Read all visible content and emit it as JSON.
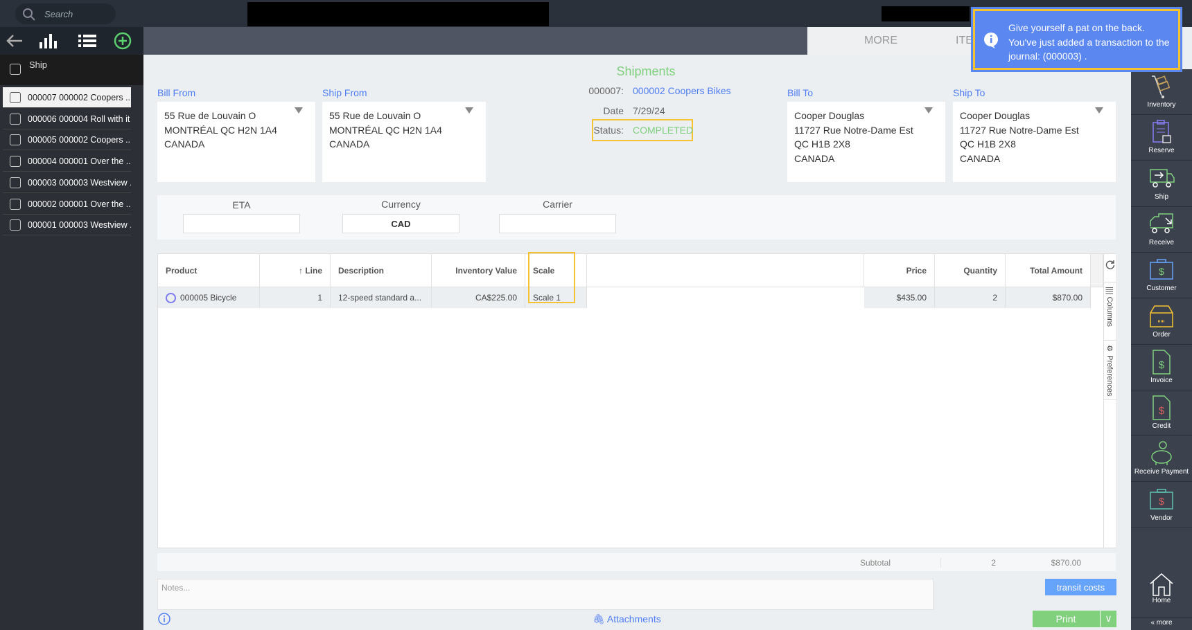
{
  "topbar": {
    "search_placeholder": "Search"
  },
  "left": {
    "header": "Ship",
    "items": [
      "000007 000002 Coopers ...",
      "000006 000004 Roll with it",
      "000005 000002 Coopers ...",
      "000004 000001 Over the ...",
      "000003 000003 Westview .",
      "000002 000001 Over the ...",
      "000001 000003 Westview ."
    ]
  },
  "tabs": [
    "MORE",
    "ITE"
  ],
  "toast": {
    "line1": "Give yourself a pat on the back.",
    "line2": "You've just added a transaction to the",
    "line3": "journal:  (000003)  ."
  },
  "header": {
    "title": "Shipments",
    "number": "000007:",
    "customer": "000002 Coopers Bikes",
    "date_label": "Date",
    "date": "7/29/24",
    "status_label": "Status:",
    "status": "COMPLETED"
  },
  "addresses": {
    "bill_from": {
      "label": "Bill From",
      "lines": [
        "55 Rue de Louvain O",
        "MONTRÉAL QC  H2N 1A4",
        "CANADA"
      ]
    },
    "ship_from": {
      "label": "Ship From",
      "lines": [
        "55 Rue de Louvain O",
        "MONTRÉAL QC  H2N 1A4",
        "CANADA"
      ]
    },
    "bill_to": {
      "label": "Bill To",
      "lines": [
        "Cooper Douglas",
        "11727 Rue Notre-Dame Est",
        "QC  H1B 2X8",
        "CANADA"
      ]
    },
    "ship_to": {
      "label": "Ship To",
      "lines": [
        "Cooper Douglas",
        "11727 Rue Notre-Dame Est",
        "QC  H1B 2X8",
        "CANADA"
      ]
    }
  },
  "fields": {
    "eta_label": "ETA",
    "eta": "",
    "currency_label": "Currency",
    "currency": "CAD",
    "carrier_label": "Carrier",
    "carrier": ""
  },
  "grid": {
    "columns": [
      "Product",
      "↑ Line",
      "Description",
      "Inventory Value",
      "Scale",
      "Price",
      "Quantity",
      "Total Amount"
    ],
    "rows": [
      {
        "product": "000005 Bicycle",
        "line": "1",
        "description": "12-speed standard a...",
        "inventory_value": "CA$225.00",
        "scale": "Scale 1",
        "price": "$435.00",
        "quantity": "2",
        "total": "$870.00"
      }
    ],
    "side_columns": "Columns",
    "side_preferences": "Preferences"
  },
  "subtotal": {
    "label": "Subtotal",
    "quantity": "2",
    "amount": "$870.00"
  },
  "notes_placeholder": "Notes...",
  "buttons": {
    "transit": "transit costs",
    "attachments": "Attachments",
    "print": "Print"
  },
  "rightbar": [
    "Inventory",
    "Reserve",
    "Ship",
    "Receive",
    "Customer",
    "Order",
    "Invoice",
    "Credit",
    "Receive Payment",
    "Vendor"
  ],
  "home": "Home",
  "more": "« more",
  "colors": {
    "accent": "#4f7df3",
    "green": "#7fcf7f",
    "highlight": "#f5c231",
    "toast": "#5b87f0"
  }
}
